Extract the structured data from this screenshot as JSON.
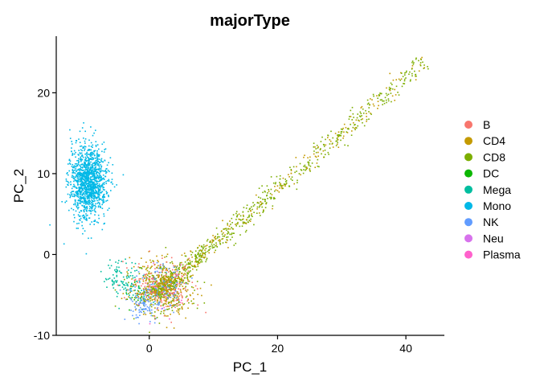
{
  "chart_data": {
    "type": "scatter",
    "title": "majorType",
    "xlabel": "PC_1",
    "ylabel": "PC_2",
    "xlim": [
      -14.5,
      46
    ],
    "ylim": [
      -10,
      27
    ],
    "x_ticks": [
      0,
      20,
      40
    ],
    "y_ticks": [
      -10,
      0,
      10,
      20
    ],
    "grid": false,
    "legend_position": "right",
    "series": [
      {
        "name": "B",
        "color": "#F8766D"
      },
      {
        "name": "CD4",
        "color": "#C49A00"
      },
      {
        "name": "CD8",
        "color": "#7CAE00"
      },
      {
        "name": "DC",
        "color": "#0CB702"
      },
      {
        "name": "Mega",
        "color": "#00BE9F"
      },
      {
        "name": "Mono",
        "color": "#00B8E7"
      },
      {
        "name": "NK",
        "color": "#619CFF"
      },
      {
        "name": "Neu",
        "color": "#D772EC"
      },
      {
        "name": "Plasma",
        "color": "#FF61CC"
      }
    ]
  }
}
